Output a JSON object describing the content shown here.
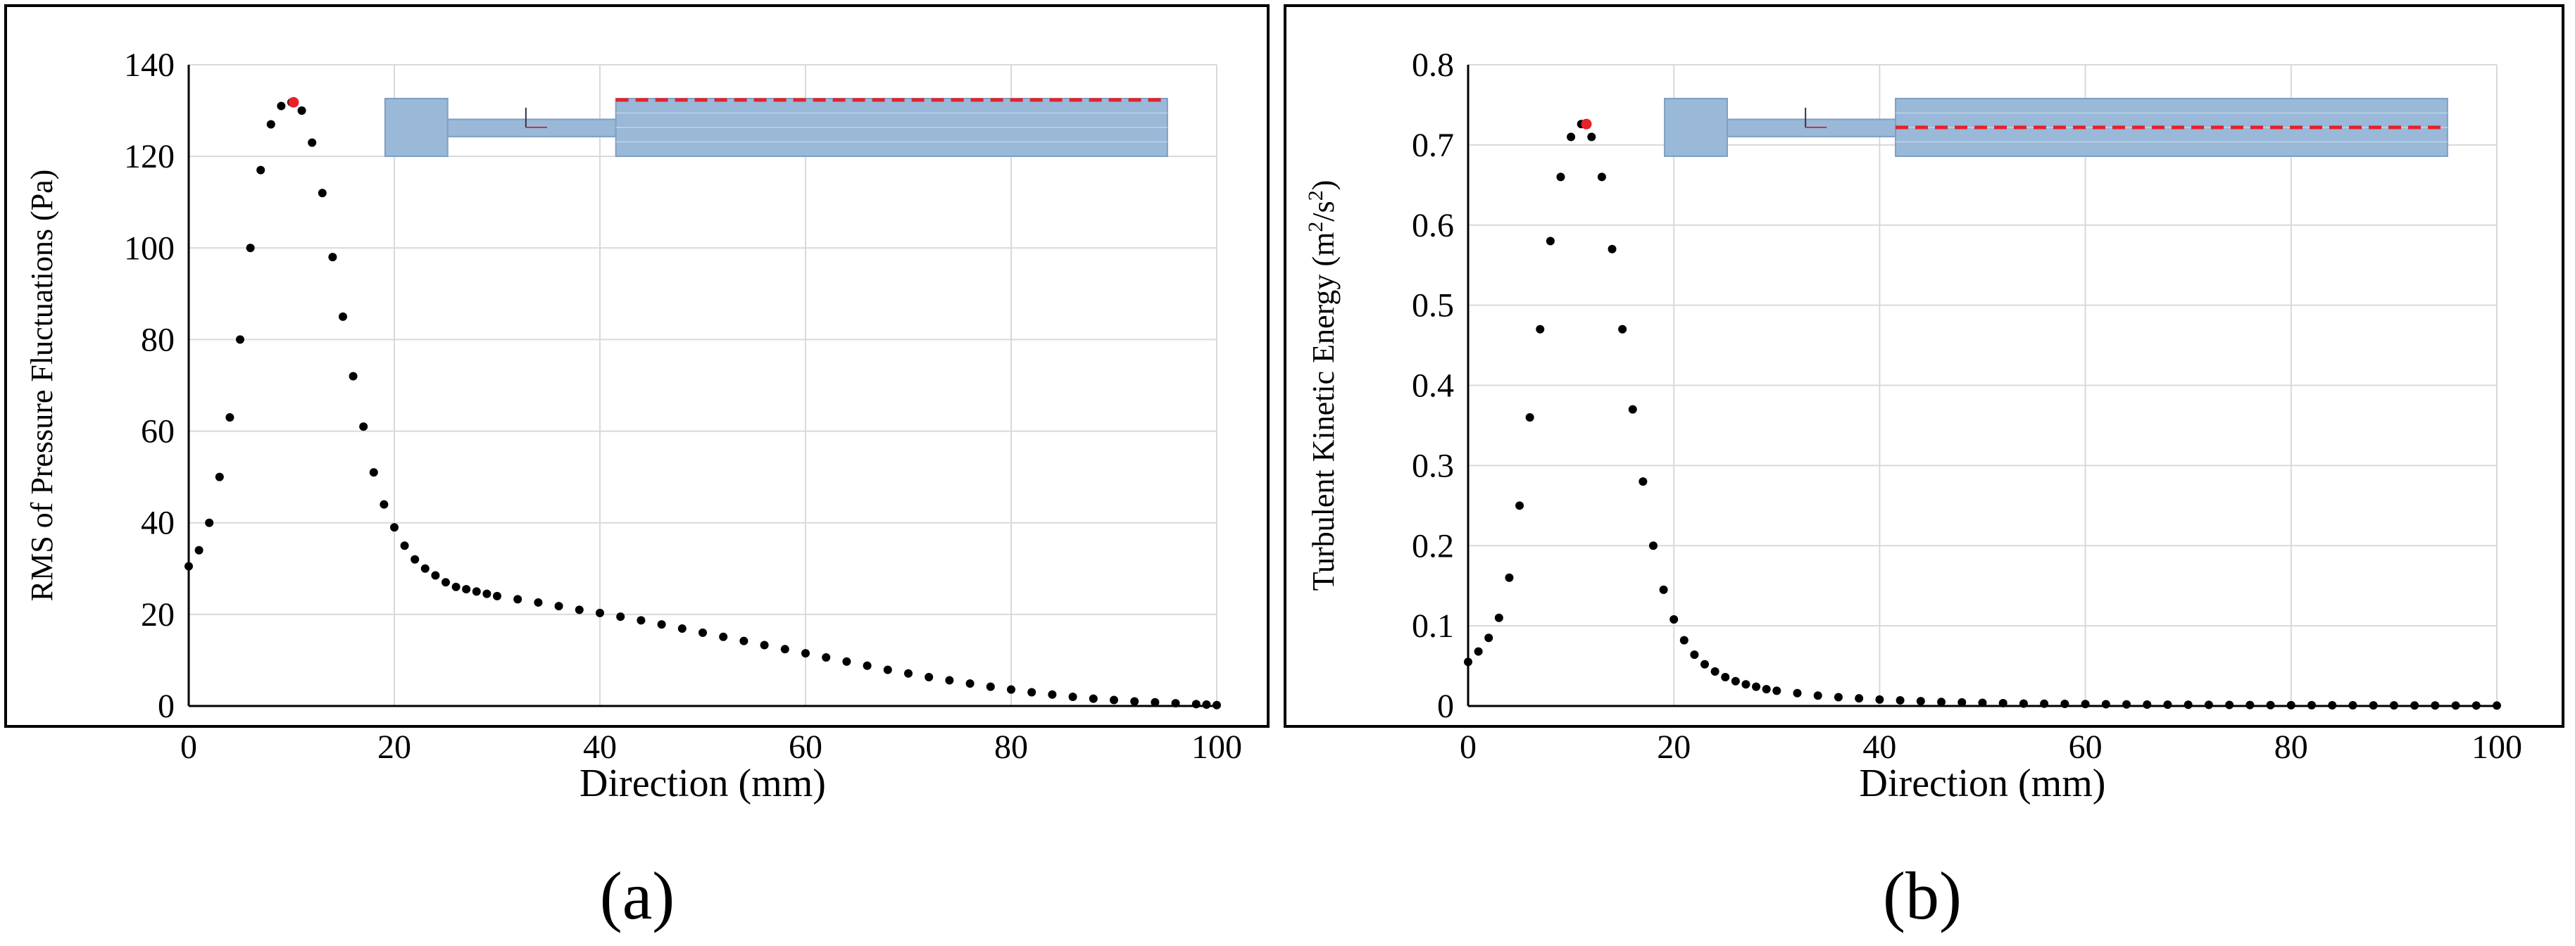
{
  "charts": [
    {
      "id": "a",
      "caption": "(a)",
      "type": "scatter",
      "xlabel": "Direction (mm)",
      "ylabel": "RMS of Pressure Fluctuations (Pa)",
      "ylabel_parts": [
        "RMS of Pressure Fluctuations (Pa)"
      ],
      "xlim": [
        0,
        100
      ],
      "ylim": [
        0,
        140
      ],
      "xticks": [
        0,
        20,
        40,
        60,
        80,
        100
      ],
      "yticks": [
        0,
        20,
        40,
        60,
        80,
        100,
        120,
        140
      ],
      "ytick_labels": [
        "0",
        "20",
        "40",
        "60",
        "80",
        "100",
        "120",
        "140"
      ],
      "grid": true,
      "point_color": "#000000",
      "peak": {
        "x": 10.2,
        "y": 131.8,
        "color": "#e8202a"
      },
      "x": [
        0,
        1,
        2,
        3,
        4,
        5,
        6,
        7,
        8,
        9,
        10,
        11,
        12,
        13,
        14,
        15,
        16,
        17,
        18,
        19,
        20,
        21,
        22,
        23,
        24,
        25,
        26,
        27,
        28,
        29,
        30,
        32,
        34,
        36,
        38,
        40,
        42,
        44,
        46,
        48,
        50,
        52,
        54,
        56,
        58,
        60,
        62,
        64,
        66,
        68,
        70,
        72,
        74,
        76,
        78,
        80,
        82,
        84,
        86,
        88,
        90,
        92,
        94,
        96,
        98,
        99,
        100
      ],
      "y": [
        30.5,
        34,
        40,
        50,
        63,
        80,
        100,
        117,
        127,
        131,
        131.8,
        130,
        123,
        112,
        98,
        85,
        72,
        61,
        51,
        44,
        39,
        35,
        32,
        30,
        28.5,
        27,
        26,
        25.5,
        25,
        24.5,
        24,
        23.3,
        22.6,
        21.8,
        21,
        20.3,
        19.5,
        18.7,
        17.8,
        16.9,
        16,
        15.1,
        14.2,
        13.3,
        12.4,
        11.5,
        10.6,
        9.7,
        8.8,
        7.9,
        7.1,
        6.3,
        5.6,
        4.9,
        4.2,
        3.6,
        3,
        2.5,
        2,
        1.6,
        1.3,
        1,
        0.8,
        0.6,
        0.4,
        0.3,
        0.2
      ],
      "inset": {
        "blue": "#9ab8d8",
        "blue_dark": "#7f9fc4",
        "line_color": "#e8202a",
        "line_position": "top"
      }
    },
    {
      "id": "b",
      "caption": "(b)",
      "type": "scatter",
      "xlabel": "Direction (mm)",
      "ylabel": "Turbulent Kinetic Energy (m²/s²)",
      "ylabel_parts": [
        "Turbulent Kinetic Energy (m",
        "2",
        "/s",
        "2",
        ")"
      ],
      "xlim": [
        0,
        100
      ],
      "ylim": [
        0,
        0.8
      ],
      "xticks": [
        0,
        20,
        40,
        60,
        80,
        100
      ],
      "yticks": [
        0,
        0.1,
        0.2,
        0.3,
        0.4,
        0.5,
        0.6,
        0.7,
        0.8
      ],
      "ytick_labels": [
        "0",
        "0.1",
        "0.2",
        "0.3",
        "0.4",
        "0.5",
        "0.6",
        "0.7",
        "0.8"
      ],
      "grid": true,
      "point_color": "#000000",
      "peak": {
        "x": 11.5,
        "y": 0.726,
        "color": "#e8202a"
      },
      "x": [
        0,
        1,
        2,
        3,
        4,
        5,
        6,
        7,
        8,
        9,
        10,
        11,
        12,
        13,
        14,
        15,
        16,
        17,
        18,
        19,
        20,
        21,
        22,
        23,
        24,
        25,
        26,
        27,
        28,
        29,
        30,
        32,
        34,
        36,
        38,
        40,
        42,
        44,
        46,
        48,
        50,
        52,
        54,
        56,
        58,
        60,
        62,
        64,
        66,
        68,
        70,
        72,
        74,
        76,
        78,
        80,
        82,
        84,
        86,
        88,
        90,
        92,
        94,
        96,
        98,
        100
      ],
      "y": [
        0.055,
        0.068,
        0.085,
        0.11,
        0.16,
        0.25,
        0.36,
        0.47,
        0.58,
        0.66,
        0.71,
        0.726,
        0.71,
        0.66,
        0.57,
        0.47,
        0.37,
        0.28,
        0.2,
        0.145,
        0.108,
        0.082,
        0.064,
        0.052,
        0.043,
        0.036,
        0.031,
        0.027,
        0.024,
        0.021,
        0.019,
        0.016,
        0.013,
        0.011,
        0.0095,
        0.008,
        0.007,
        0.006,
        0.005,
        0.0045,
        0.004,
        0.0035,
        0.003,
        0.0028,
        0.0026,
        0.0024,
        0.0022,
        0.002,
        0.0018,
        0.0016,
        0.0015,
        0.0014,
        0.0013,
        0.0012,
        0.0011,
        0.001,
        0.001,
        0.0009,
        0.0009,
        0.0008,
        0.0008,
        0.0007,
        0.0007,
        0.0006,
        0.0006,
        0.0005
      ],
      "inset": {
        "blue": "#9ab8d8",
        "blue_dark": "#7f9fc4",
        "line_color": "#e8202a",
        "line_position": "middle"
      }
    }
  ]
}
